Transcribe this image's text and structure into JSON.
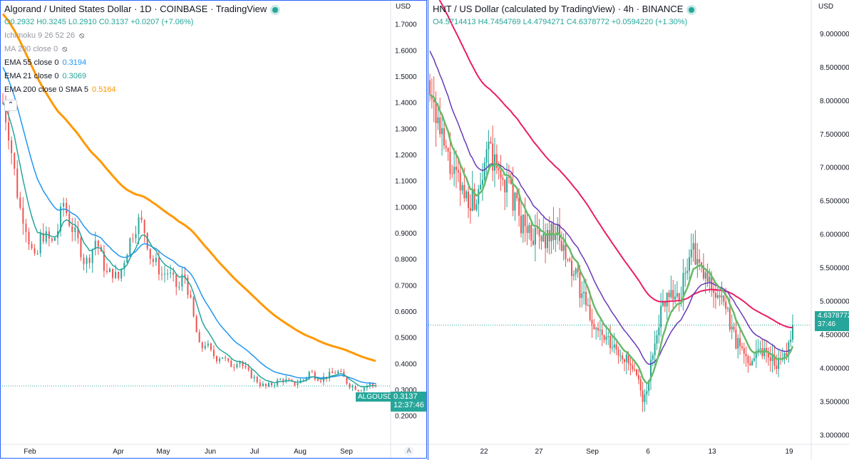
{
  "left": {
    "title": "Algorand / United States Dollar · 1D · COINBASE · TradingView",
    "ohlc": "O0.2932 H0.3245 L0.2910 C0.3137 +0.0207 (+7.06%)",
    "indicators": [
      {
        "label": "Ichimoku 9 26 52 26",
        "value": "",
        "muted": true,
        "hidden": true
      },
      {
        "label": "MA 200 close 0",
        "value": "",
        "muted": true,
        "hidden": true
      },
      {
        "label": "EMA 55 close 0",
        "value": "0.3194",
        "color": "#2196f3"
      },
      {
        "label": "EMA 21 close 0",
        "value": "0.3069",
        "color": "#26a69a"
      },
      {
        "label": "EMA 200 close 0 SMA 5",
        "value": "0.5164",
        "color": "#ff9800"
      }
    ],
    "currency": "USD",
    "symbol_tag": "ALGOUSD",
    "last_price": "0.3137",
    "countdown": "12:37:46",
    "auto_label": "A",
    "collapse_icon": "chevron-up"
  },
  "right": {
    "title": "HNT / US Dollar (calculated by TradingView) · 4h · BINANCE",
    "ohlc": "O4.5714413 H4.7454769 L4.4794271 C4.6378772 +0.0594220 (+1.30%)",
    "currency": "USD",
    "last_price": "4.6378772",
    "countdown": "37:46"
  },
  "colors": {
    "up": "#26a69a",
    "down": "#ef5350",
    "ema55": "#2196f3",
    "ema21": "#26a69a",
    "ema200": "#ff9800",
    "hnt_fast": "#66bb6a",
    "hnt_mid": "#673ab7",
    "hnt_slow": "#e91e63"
  },
  "chart_data": [
    {
      "type": "candlestick",
      "title": "Algorand / United States Dollar · 1D · COINBASE",
      "y_ticks": [
        "1.7000",
        "1.6000",
        "1.5000",
        "1.4000",
        "1.3000",
        "1.2000",
        "1.1000",
        "1.0000",
        "0.9000",
        "0.8000",
        "0.7000",
        "0.6000",
        "0.5000",
        "0.4000",
        "0.3000",
        "0.2000"
      ],
      "x_ticks": [
        "Feb",
        "Apr",
        "May",
        "Jun",
        "Jul",
        "Aug",
        "Sep"
      ],
      "ylim": [
        0.15,
        1.74
      ],
      "close_path": [
        [
          "Jan-10",
          1.4
        ],
        [
          "Jan-12",
          1.3
        ],
        [
          "Jan-14",
          1.15
        ],
        [
          "Jan-16",
          1.0
        ],
        [
          "Jan-18",
          0.95
        ],
        [
          "Jan-21",
          0.85
        ],
        [
          "Jan-24",
          0.78
        ],
        [
          "Jan-27",
          0.9
        ],
        [
          "Jan-30",
          0.88
        ],
        [
          "Feb-03",
          0.86
        ],
        [
          "Feb-06",
          0.91
        ],
        [
          "Feb-09",
          1.02
        ],
        [
          "Feb-12",
          0.95
        ],
        [
          "Feb-15",
          0.9
        ],
        [
          "Feb-18",
          0.85
        ],
        [
          "Feb-22",
          0.78
        ],
        [
          "Feb-25",
          0.82
        ],
        [
          "Mar-01",
          0.88
        ],
        [
          "Mar-04",
          0.8
        ],
        [
          "Mar-08",
          0.74
        ],
        [
          "Mar-12",
          0.75
        ],
        [
          "Mar-16",
          0.72
        ],
        [
          "Mar-20",
          0.79
        ],
        [
          "Mar-24",
          0.86
        ],
        [
          "Mar-28",
          0.92
        ],
        [
          "Apr-01",
          0.95
        ],
        [
          "Apr-04",
          0.9
        ],
        [
          "Apr-08",
          0.8
        ],
        [
          "Apr-12",
          0.78
        ],
        [
          "Apr-16",
          0.74
        ],
        [
          "Apr-20",
          0.75
        ],
        [
          "Apr-24",
          0.72
        ],
        [
          "Apr-28",
          0.68
        ],
        [
          "May-01",
          0.75
        ],
        [
          "May-04",
          0.66
        ],
        [
          "May-08",
          0.55
        ],
        [
          "May-10",
          0.45
        ],
        [
          "May-13",
          0.48
        ],
        [
          "May-16",
          0.44
        ],
        [
          "May-20",
          0.42
        ],
        [
          "May-24",
          0.43
        ],
        [
          "May-28",
          0.4
        ],
        [
          "Jun-01",
          0.39
        ],
        [
          "Jun-04",
          0.42
        ],
        [
          "Jun-08",
          0.38
        ],
        [
          "Jun-12",
          0.36
        ],
        [
          "Jun-15",
          0.34
        ],
        [
          "Jun-18",
          0.32
        ],
        [
          "Jun-22",
          0.31
        ],
        [
          "Jun-26",
          0.32
        ],
        [
          "Jul-01",
          0.33
        ],
        [
          "Jul-05",
          0.34
        ],
        [
          "Jul-09",
          0.33
        ],
        [
          "Jul-13",
          0.32
        ],
        [
          "Jul-17",
          0.33
        ],
        [
          "Jul-21",
          0.34
        ],
        [
          "Jul-25",
          0.37
        ],
        [
          "Jul-29",
          0.35
        ],
        [
          "Aug-02",
          0.34
        ],
        [
          "Aug-06",
          0.35
        ],
        [
          "Aug-10",
          0.36
        ],
        [
          "Aug-14",
          0.37
        ],
        [
          "Aug-18",
          0.35
        ],
        [
          "Aug-22",
          0.32
        ],
        [
          "Aug-26",
          0.31
        ],
        [
          "Aug-30",
          0.3
        ],
        [
          "Sep-03",
          0.31
        ],
        [
          "Sep-07",
          0.32
        ],
        [
          "Sep-10",
          0.3137
        ]
      ],
      "series": [
        {
          "name": "EMA 55 close 0",
          "last": 0.3194
        },
        {
          "name": "EMA 21 close 0",
          "last": 0.3069
        },
        {
          "name": "EMA 200 close 0 SMA 5",
          "last": 0.5164
        }
      ]
    },
    {
      "type": "candlestick",
      "title": "HNT / US Dollar · 4h · BINANCE",
      "y_ticks": [
        "9.0000000",
        "8.5000000",
        "8.0000000",
        "7.5000000",
        "7.0000000",
        "6.5000000",
        "6.0000000",
        "5.5000000",
        "5.0000000",
        "4.5000000",
        "4.0000000",
        "3.5000000",
        "3.0000000"
      ],
      "x_ticks": [
        "22",
        "27",
        "Sep",
        "6",
        "13",
        "19"
      ],
      "ylim": [
        2.62,
        9.5
      ],
      "close_path": [
        [
          "Aug-18",
          8.3
        ],
        [
          "Aug-19",
          7.4
        ],
        [
          "Aug-20",
          6.9
        ],
        [
          "Aug-21",
          6.6
        ],
        [
          "Aug-22",
          6.5
        ],
        [
          "Aug-23",
          7.3
        ],
        [
          "Aug-24",
          6.9
        ],
        [
          "Aug-25",
          6.7
        ],
        [
          "Aug-26",
          6.2
        ],
        [
          "Aug-27",
          6.0
        ],
        [
          "Aug-28",
          5.9
        ],
        [
          "Aug-29",
          6.1
        ],
        [
          "Aug-30",
          5.6
        ],
        [
          "Aug-31",
          5.3
        ],
        [
          "Sep-01",
          4.8
        ],
        [
          "Sep-02",
          4.5
        ],
        [
          "Sep-03",
          4.3
        ],
        [
          "Sep-04",
          4.2
        ],
        [
          "Sep-05",
          3.9
        ],
        [
          "Sep-06",
          3.5
        ],
        [
          "Sep-07",
          4.6
        ],
        [
          "Sep-08",
          5.2
        ],
        [
          "Sep-09",
          5.0
        ],
        [
          "Sep-10",
          5.8
        ],
        [
          "Sep-11",
          5.4
        ],
        [
          "Sep-12",
          5.2
        ],
        [
          "Sep-13",
          4.9
        ],
        [
          "Sep-14",
          4.4
        ],
        [
          "Sep-15",
          4.1
        ],
        [
          "Sep-16",
          4.3
        ],
        [
          "Sep-17",
          4.2
        ],
        [
          "Sep-18",
          4.0
        ],
        [
          "Sep-19",
          4.6379
        ]
      ],
      "series": [
        {
          "name": "fast MA (green)"
        },
        {
          "name": "mid MA (purple)"
        },
        {
          "name": "slow MA (red)"
        }
      ]
    }
  ]
}
